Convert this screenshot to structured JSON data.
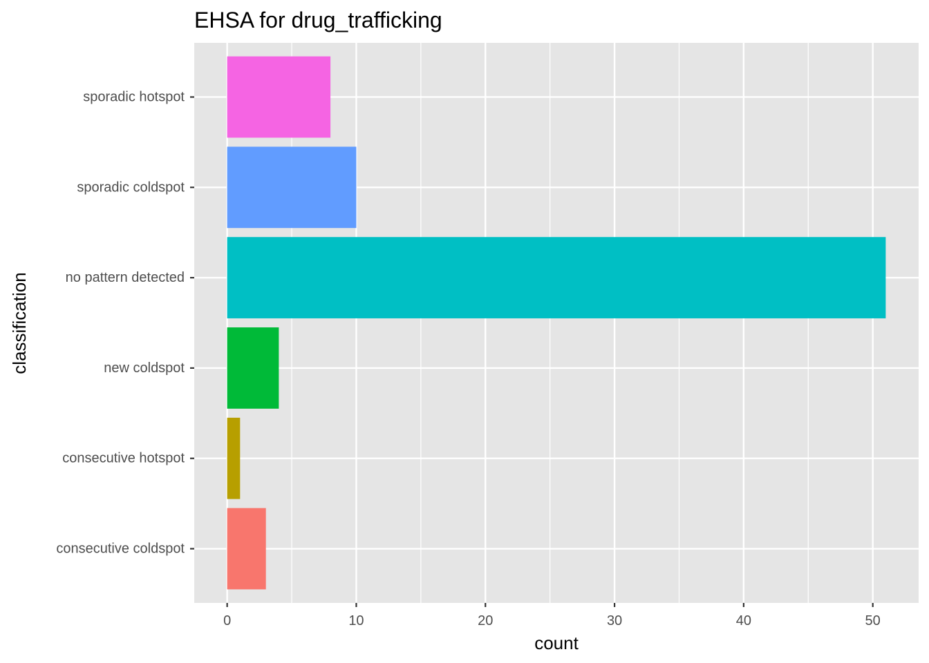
{
  "chart_data": {
    "type": "bar",
    "orientation": "horizontal",
    "title": "EHSA for drug_trafficking",
    "xlabel": "count",
    "ylabel": "classification",
    "categories": [
      "consecutive coldspot",
      "consecutive hotspot",
      "new coldspot",
      "no pattern detected",
      "sporadic coldspot",
      "sporadic hotspot"
    ],
    "values": [
      3,
      1,
      4,
      51,
      10,
      8
    ],
    "colors": [
      "#F8766D",
      "#B79F00",
      "#00BA38",
      "#00BFC4",
      "#619CFF",
      "#F564E3"
    ],
    "xlim": [
      -2.55,
      53.55
    ],
    "xticks": [
      0,
      10,
      20,
      30,
      40,
      50
    ],
    "grid": true,
    "legend": "none",
    "panel_background": "#E5E5E5",
    "grid_color": "#FFFFFF"
  }
}
